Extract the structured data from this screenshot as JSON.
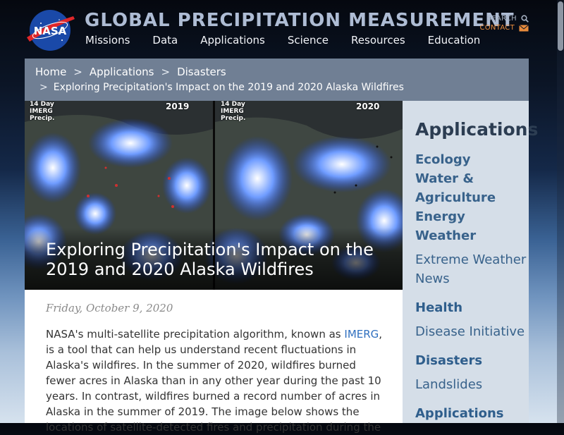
{
  "header": {
    "logo_text": "NASA",
    "site_title": "GLOBAL PRECIPITATION MEASUREMENT",
    "nav": [
      "Missions",
      "Data",
      "Applications",
      "Science",
      "Resources",
      "Education"
    ],
    "search_label": "SEARCH",
    "contact_label": "CONTACT",
    "contact_color": "#e78b3c"
  },
  "breadcrumb": {
    "home": "Home",
    "sep": ">",
    "applications": "Applications",
    "disasters": "Disasters",
    "current": "Exploring Precipitation's Impact on the 2019 and 2020 Alaska Wildfires"
  },
  "hero": {
    "left_label": "14 Day\nIMERG\nPrecip.",
    "right_label": "14 Day\nIMERG\nPrecip.",
    "left_year": "2019",
    "right_year": "2020",
    "title": "Exploring Precipitation's Impact on the 2019 and 2020 Alaska Wildfires"
  },
  "article": {
    "date": "Friday, October 9, 2020",
    "body_before_link": "NASA's multi-satellite precipitation algorithm, known as ",
    "link_text": "IMERG",
    "body_after_link": ", is a tool that can help us understand recent fluctuations in Alaska's wildfires. In the summer of 2020, wildfires burned fewer acres in Alaska than in any other year during the past 10 years. In contrast, wildfires burned a record number of acres in Alaska in the summer of 2019. The image below shows the locations of satellite-detected fires and precipitation during the"
  },
  "sidebar": {
    "title": "Applications",
    "items": [
      {
        "label": "Ecology",
        "style": "bold"
      },
      {
        "label": "Water &",
        "style": "bold"
      },
      {
        "label": "Agriculture",
        "style": "bold"
      },
      {
        "label": "Energy",
        "style": "bold"
      },
      {
        "label": "Weather",
        "style": "bold"
      },
      {
        "label": "Extreme Weather",
        "style": "normal"
      },
      {
        "label": "News",
        "style": "normal"
      },
      {
        "label": "Health",
        "style": "heading"
      },
      {
        "label": "Disease Initiative",
        "style": "normal"
      },
      {
        "label": "Disasters",
        "style": "heading"
      },
      {
        "label": "Landslides",
        "style": "normal"
      },
      {
        "label": "Applications",
        "style": "heading"
      }
    ]
  },
  "colors": {
    "breadcrumb_bg": "#707f94",
    "sidebar_bg": "#d5dee8",
    "link": "#2f6fbf"
  }
}
